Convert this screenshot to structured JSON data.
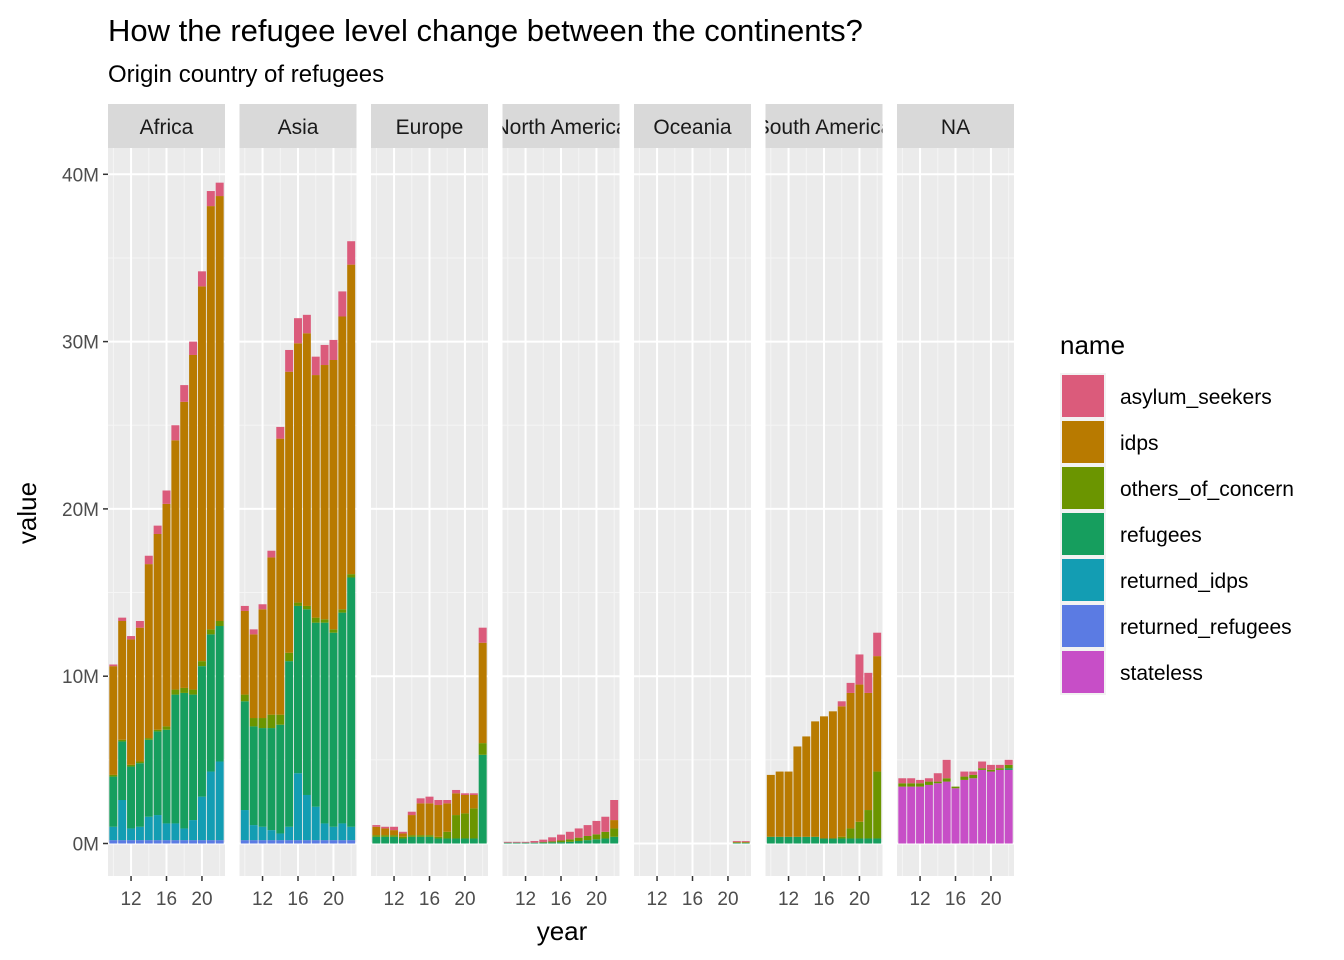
{
  "title": "How the refugee level change between the continents?",
  "subtitle": "Origin country of refugees",
  "chart_data": {
    "type": "bar",
    "stacked": true,
    "xlabel": "year",
    "ylabel": "value",
    "ylim": [
      0,
      42000000
    ],
    "y_ticks": [
      {
        "value": 0,
        "label": "0M"
      },
      {
        "value": 10000000,
        "label": "10M"
      },
      {
        "value": 20000000,
        "label": "20M"
      },
      {
        "value": 30000000,
        "label": "30M"
      },
      {
        "value": 40000000,
        "label": "40M"
      }
    ],
    "x_years": [
      2010,
      2011,
      2012,
      2013,
      2014,
      2015,
      2016,
      2017,
      2018,
      2019,
      2020,
      2021,
      2022
    ],
    "x_ticks": [
      {
        "value": 2012,
        "label": "12"
      },
      {
        "value": 2016,
        "label": "16"
      },
      {
        "value": 2020,
        "label": "20"
      }
    ],
    "legend": {
      "title": "name",
      "position": "right",
      "items": [
        {
          "key": "asylum_seekers",
          "label": "asylum_seekers",
          "color": "#DB5B7B"
        },
        {
          "key": "idps",
          "label": "idps",
          "color": "#B87A00"
        },
        {
          "key": "others_of_concern",
          "label": "others_of_concern",
          "color": "#6B9500"
        },
        {
          "key": "refugees",
          "label": "refugees",
          "color": "#169E5E"
        },
        {
          "key": "returned_idps",
          "label": "returned_idps",
          "color": "#139DB3"
        },
        {
          "key": "returned_refugees",
          "label": "returned_refugees",
          "color": "#5B7BE3"
        },
        {
          "key": "stateless",
          "label": "stateless",
          "color": "#C74EC7"
        }
      ]
    },
    "facets": [
      {
        "label": "Africa",
        "series": {
          "returned_refugees": [
            200000,
            200000,
            200000,
            200000,
            200000,
            200000,
            200000,
            200000,
            200000,
            200000,
            200000,
            200000,
            200000
          ],
          "returned_idps": [
            800000,
            2400000,
            700000,
            800000,
            1400000,
            1500000,
            1000000,
            1000000,
            700000,
            1200000,
            2600000,
            4100000,
            4700000
          ],
          "refugees": [
            3000000,
            3500000,
            3700000,
            3800000,
            4600000,
            5000000,
            5600000,
            7700000,
            8100000,
            7500000,
            7800000,
            8200000,
            8100000
          ],
          "others_of_concern": [
            100000,
            100000,
            100000,
            100000,
            100000,
            100000,
            200000,
            300000,
            300000,
            300000,
            300000,
            300000,
            300000
          ],
          "idps": [
            6500000,
            7100000,
            7500000,
            8000000,
            10400000,
            11700000,
            13300000,
            14900000,
            17100000,
            20000000,
            22400000,
            25300000,
            25400000
          ],
          "asylum_seekers": [
            100000,
            200000,
            200000,
            400000,
            500000,
            500000,
            800000,
            900000,
            1000000,
            800000,
            900000,
            900000,
            800000
          ]
        }
      },
      {
        "label": "Asia",
        "series": {
          "returned_refugees": [
            200000,
            200000,
            200000,
            200000,
            200000,
            200000,
            200000,
            200000,
            200000,
            200000,
            200000,
            200000,
            200000
          ],
          "returned_idps": [
            1800000,
            900000,
            800000,
            600000,
            400000,
            800000,
            4000000,
            2700000,
            2000000,
            1000000,
            800000,
            1000000,
            800000
          ],
          "refugees": [
            6500000,
            5900000,
            5900000,
            6100000,
            6500000,
            9900000,
            10000000,
            11100000,
            11000000,
            12000000,
            11600000,
            12600000,
            14900000
          ],
          "others_of_concern": [
            400000,
            500000,
            600000,
            800000,
            600000,
            500000,
            200000,
            200000,
            300000,
            200000,
            200000,
            200000,
            200000
          ],
          "idps": [
            5000000,
            5000000,
            6500000,
            9400000,
            16500000,
            16800000,
            15500000,
            16300000,
            14500000,
            15200000,
            16100000,
            17500000,
            18500000
          ],
          "asylum_seekers": [
            300000,
            300000,
            300000,
            400000,
            700000,
            1300000,
            1500000,
            1100000,
            1100000,
            1200000,
            1200000,
            1500000,
            1400000
          ]
        }
      },
      {
        "label": "Europe",
        "series": {
          "refugees": [
            400000,
            400000,
            400000,
            300000,
            400000,
            400000,
            400000,
            300000,
            300000,
            300000,
            300000,
            300000,
            5300000
          ],
          "others_of_concern": [
            100000,
            100000,
            100000,
            100000,
            100000,
            100000,
            100000,
            100000,
            400000,
            1400000,
            1500000,
            1800000,
            700000
          ],
          "idps": [
            500000,
            400000,
            300000,
            200000,
            1200000,
            1900000,
            1900000,
            1900000,
            1700000,
            1300000,
            1100000,
            800000,
            6000000
          ],
          "asylum_seekers": [
            100000,
            100000,
            200000,
            100000,
            200000,
            300000,
            400000,
            300000,
            200000,
            200000,
            100000,
            100000,
            900000
          ]
        }
      },
      {
        "label": "North America",
        "series": {
          "refugees": [
            50000,
            50000,
            50000,
            50000,
            60000,
            70000,
            80000,
            100000,
            150000,
            200000,
            250000,
            300000,
            400000
          ],
          "others_of_concern": [
            0,
            0,
            0,
            0,
            20000,
            50000,
            100000,
            150000,
            200000,
            250000,
            300000,
            400000,
            500000
          ],
          "idps": [
            0,
            0,
            0,
            0,
            0,
            0,
            0,
            0,
            0,
            0,
            0,
            0,
            500000
          ],
          "asylum_seekers": [
            50000,
            50000,
            50000,
            100000,
            150000,
            250000,
            350000,
            450000,
            550000,
            650000,
            800000,
            900000,
            1200000
          ]
        }
      },
      {
        "label": "Oceania",
        "series": {
          "refugees": [
            0,
            0,
            0,
            0,
            0,
            0,
            0,
            0,
            0,
            0,
            0,
            50000,
            50000
          ],
          "idps": [
            0,
            0,
            0,
            0,
            0,
            0,
            0,
            0,
            0,
            0,
            0,
            50000,
            50000
          ],
          "asylum_seekers": [
            0,
            0,
            0,
            0,
            0,
            0,
            0,
            0,
            0,
            0,
            0,
            50000,
            50000
          ]
        }
      },
      {
        "label": "South America",
        "series": {
          "refugees": [
            400000,
            400000,
            400000,
            400000,
            400000,
            400000,
            300000,
            300000,
            300000,
            300000,
            300000,
            300000,
            300000
          ],
          "others_of_concern": [
            0,
            0,
            0,
            0,
            0,
            0,
            0,
            0,
            100000,
            600000,
            1000000,
            1700000,
            4000000
          ],
          "idps": [
            3700000,
            3900000,
            3900000,
            5400000,
            6000000,
            6900000,
            7300000,
            7600000,
            7800000,
            8100000,
            8200000,
            7000000,
            6900000
          ],
          "asylum_seekers": [
            0,
            0,
            0,
            0,
            0,
            0,
            0,
            0,
            300000,
            600000,
            1800000,
            1200000,
            1400000
          ]
        }
      },
      {
        "label": "NA",
        "series": {
          "stateless": [
            3400000,
            3400000,
            3400000,
            3500000,
            3600000,
            3700000,
            3300000,
            3800000,
            3900000,
            4400000,
            4300000,
            4400000,
            4400000
          ],
          "others_of_concern": [
            200000,
            200000,
            200000,
            200000,
            100000,
            200000,
            100000,
            200000,
            200000,
            100000,
            100000,
            100000,
            200000
          ],
          "refugees": [
            0,
            0,
            0,
            0,
            0,
            0,
            0,
            0,
            0,
            0,
            0,
            0,
            100000
          ],
          "asylum_seekers": [
            300000,
            300000,
            200000,
            200000,
            500000,
            1100000,
            0,
            300000,
            200000,
            400000,
            300000,
            200000,
            300000
          ]
        }
      }
    ]
  }
}
